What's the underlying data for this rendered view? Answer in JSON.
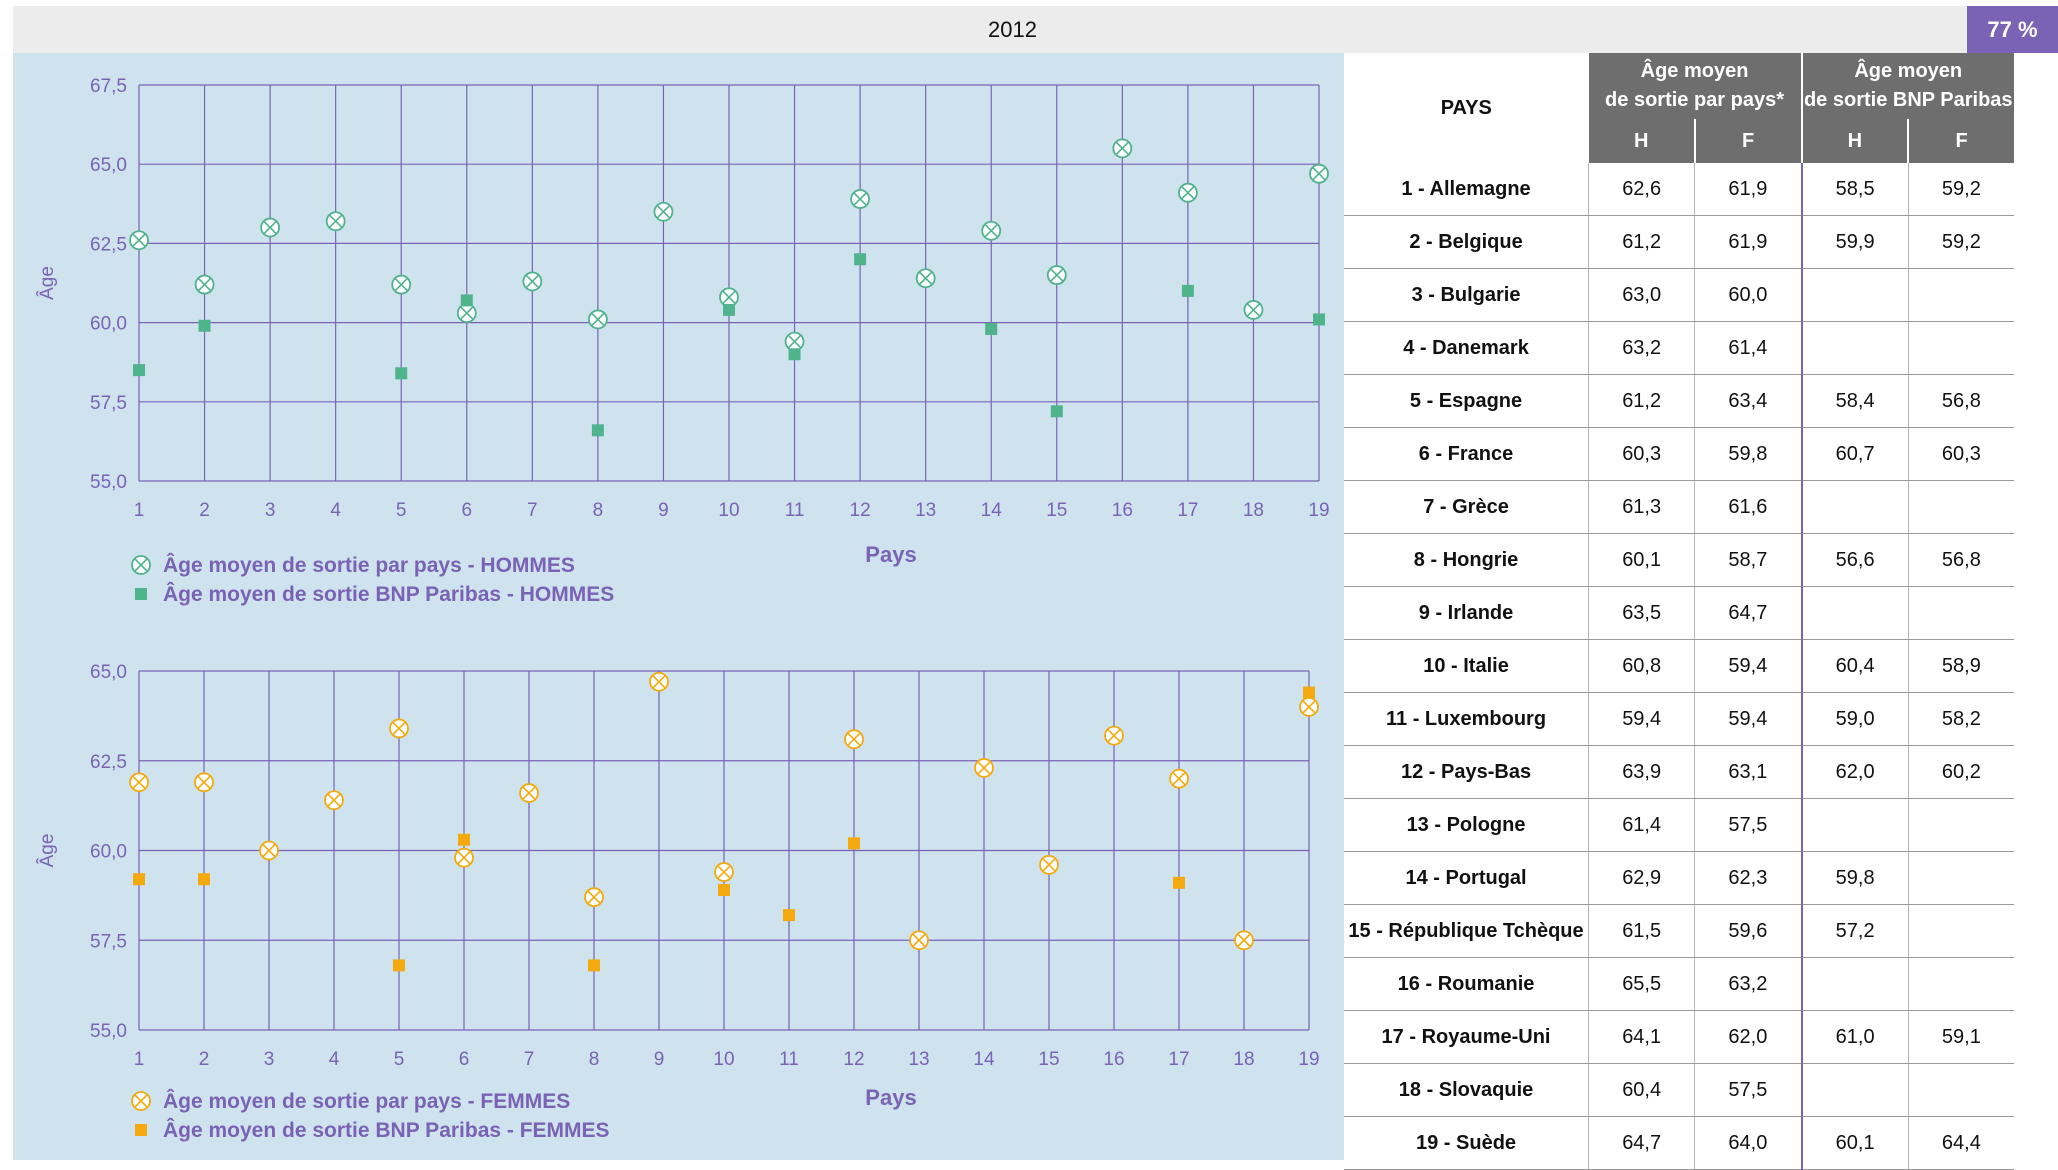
{
  "year": "2012",
  "badge": "77 %",
  "colors": {
    "purple": "#7a62b4",
    "green": "#4fb38c",
    "orange": "#f4aa0f",
    "grid": "#7a62b4",
    "chart_bg": "#cfe3ef"
  },
  "table": {
    "col_pays": "PAYS",
    "group1": [
      "Âge moyen",
      "de sortie par pays*"
    ],
    "group2": [
      "Âge moyen",
      "de sortie BNP Paribas"
    ],
    "sub": [
      "H",
      "F",
      "H",
      "F"
    ],
    "rows": [
      {
        "pays": "1 - Allemagne",
        "h1": "62,6",
        "f1": "61,9",
        "h2": "58,5",
        "f2": "59,2"
      },
      {
        "pays": "2 - Belgique",
        "h1": "61,2",
        "f1": "61,9",
        "h2": "59,9",
        "f2": "59,2"
      },
      {
        "pays": "3 - Bulgarie",
        "h1": "63,0",
        "f1": "60,0",
        "h2": "",
        "f2": ""
      },
      {
        "pays": "4 - Danemark",
        "h1": "63,2",
        "f1": "61,4",
        "h2": "",
        "f2": ""
      },
      {
        "pays": "5 - Espagne",
        "h1": "61,2",
        "f1": "63,4",
        "h2": "58,4",
        "f2": "56,8"
      },
      {
        "pays": "6 - France",
        "h1": "60,3",
        "f1": "59,8",
        "h2": "60,7",
        "f2": "60,3"
      },
      {
        "pays": "7 - Grèce",
        "h1": "61,3",
        "f1": "61,6",
        "h2": "",
        "f2": ""
      },
      {
        "pays": "8 - Hongrie",
        "h1": "60,1",
        "f1": "58,7",
        "h2": "56,6",
        "f2": "56,8"
      },
      {
        "pays": "9 - Irlande",
        "h1": "63,5",
        "f1": "64,7",
        "h2": "",
        "f2": ""
      },
      {
        "pays": "10 - Italie",
        "h1": "60,8",
        "f1": "59,4",
        "h2": "60,4",
        "f2": "58,9"
      },
      {
        "pays": "11 - Luxembourg",
        "h1": "59,4",
        "f1": "59,4",
        "h2": "59,0",
        "f2": "58,2"
      },
      {
        "pays": "12 - Pays-Bas",
        "h1": "63,9",
        "f1": "63,1",
        "h2": "62,0",
        "f2": "60,2"
      },
      {
        "pays": "13 - Pologne",
        "h1": "61,4",
        "f1": "57,5",
        "h2": "",
        "f2": ""
      },
      {
        "pays": "14 - Portugal",
        "h1": "62,9",
        "f1": "62,3",
        "h2": "59,8",
        "f2": ""
      },
      {
        "pays": "15 - République Tchèque",
        "h1": "61,5",
        "f1": "59,6",
        "h2": "57,2",
        "f2": ""
      },
      {
        "pays": "16 - Roumanie",
        "h1": "65,5",
        "f1": "63,2",
        "h2": "",
        "f2": ""
      },
      {
        "pays": "17 - Royaume-Uni",
        "h1": "64,1",
        "f1": "62,0",
        "h2": "61,0",
        "f2": "59,1"
      },
      {
        "pays": "18 - Slovaquie",
        "h1": "60,4",
        "f1": "57,5",
        "h2": "",
        "f2": ""
      },
      {
        "pays": "19 - Suède",
        "h1": "64,7",
        "f1": "64,0",
        "h2": "60,1",
        "f2": "64,4"
      }
    ]
  },
  "chart_data": [
    {
      "type": "scatter",
      "xlabel": "Pays",
      "ylabel": "Âge",
      "x": [
        1,
        2,
        3,
        4,
        5,
        6,
        7,
        8,
        9,
        10,
        11,
        12,
        13,
        14,
        15,
        16,
        17,
        18,
        19
      ],
      "xlim": [
        1,
        19
      ],
      "ylim": [
        55,
        67.5
      ],
      "yticks": [
        "55,0",
        "57,5",
        "60,0",
        "62,5",
        "65,0",
        "67,5"
      ],
      "grid": true,
      "legend": "bottom-left",
      "series": [
        {
          "name": "Âge moyen de sortie par pays - HOMMES",
          "marker": "circle-x",
          "color": "#4fb38c",
          "values": [
            62.6,
            61.2,
            63.0,
            63.2,
            61.2,
            60.3,
            61.3,
            60.1,
            63.5,
            60.8,
            59.4,
            63.9,
            61.4,
            62.9,
            61.5,
            65.5,
            64.1,
            60.4,
            64.7
          ]
        },
        {
          "name": "Âge moyen de sortie BNP Paribas - HOMMES",
          "marker": "square",
          "color": "#4fb38c",
          "values": [
            58.5,
            59.9,
            null,
            null,
            58.4,
            60.7,
            null,
            56.6,
            null,
            60.4,
            59.0,
            62.0,
            null,
            59.8,
            57.2,
            null,
            61.0,
            null,
            60.1
          ]
        }
      ]
    },
    {
      "type": "scatter",
      "xlabel": "Pays",
      "ylabel": "Âge",
      "x": [
        1,
        2,
        3,
        4,
        5,
        6,
        7,
        8,
        9,
        10,
        11,
        12,
        13,
        14,
        15,
        16,
        17,
        18,
        19
      ],
      "xlim": [
        1,
        19
      ],
      "ylim": [
        55,
        65
      ],
      "yticks": [
        "55,0",
        "57,5",
        "60,0",
        "62,5",
        "65,0"
      ],
      "grid": true,
      "legend": "bottom-left",
      "series": [
        {
          "name": "Âge moyen de sortie par pays - FEMMES",
          "marker": "circle-x",
          "color": "#f4aa0f",
          "values": [
            61.9,
            61.9,
            60.0,
            61.4,
            63.4,
            59.8,
            61.6,
            58.7,
            64.7,
            59.4,
            null,
            63.1,
            57.5,
            62.3,
            59.6,
            63.2,
            62.0,
            57.5,
            64.0
          ]
        },
        {
          "name": "Âge moyen de sortie BNP Paribas - FEMMES",
          "marker": "square",
          "color": "#f4aa0f",
          "values": [
            59.2,
            59.2,
            null,
            null,
            56.8,
            60.3,
            null,
            56.8,
            null,
            58.9,
            58.2,
            60.2,
            null,
            null,
            null,
            null,
            59.1,
            null,
            64.4
          ]
        }
      ]
    }
  ]
}
